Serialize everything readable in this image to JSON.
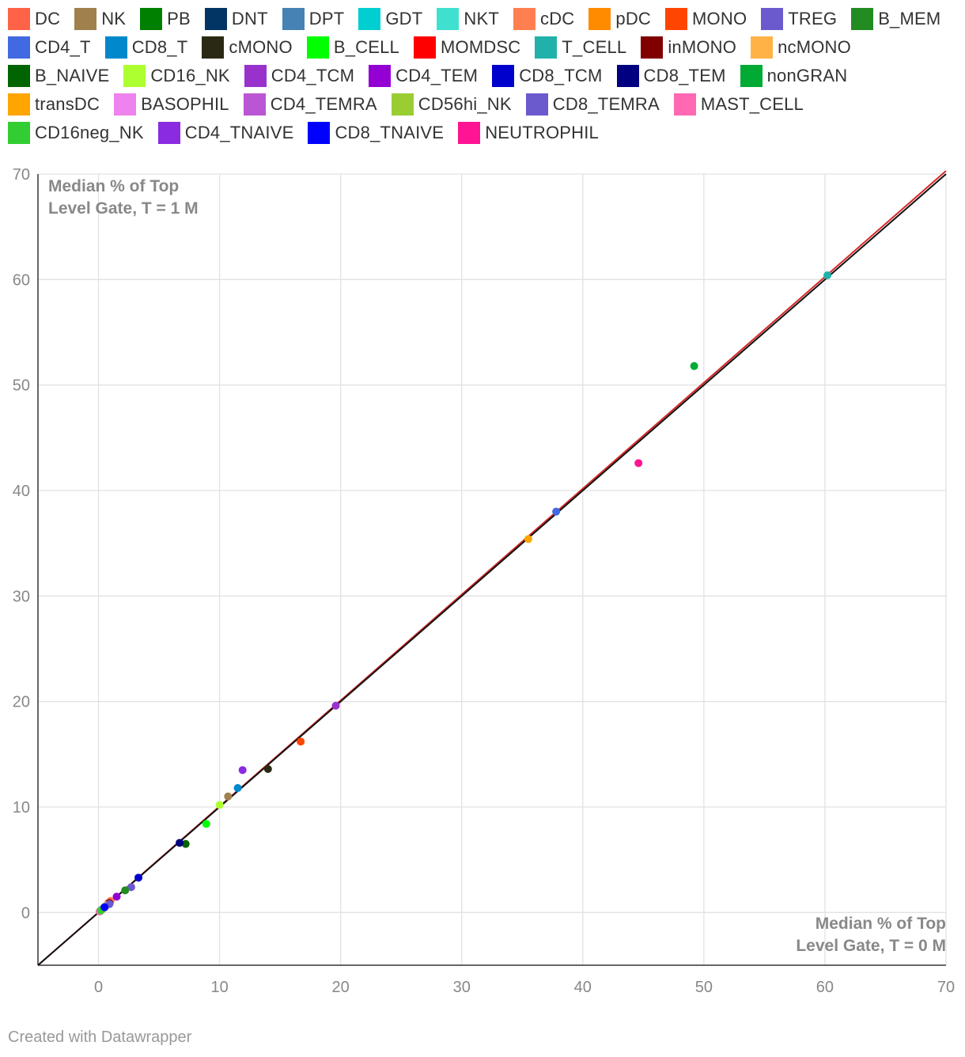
{
  "chart_data": {
    "type": "scatter",
    "xlabel": [
      "Median % of Top",
      "Level Gate, T = 0 M"
    ],
    "ylabel": [
      "Median % of Top",
      "Level Gate, T = 1 M"
    ],
    "xlim": [
      -5,
      70
    ],
    "ylim": [
      -5,
      70
    ],
    "xticks": [
      0,
      10,
      20,
      30,
      40,
      50,
      60,
      70
    ],
    "yticks": [
      0,
      10,
      20,
      30,
      40,
      50,
      60,
      70
    ],
    "grid": true,
    "legend_position": "top",
    "reference_lines": [
      {
        "name": "fit",
        "color": "#d62728",
        "points": [
          [
            -5,
            -5
          ],
          [
            70,
            70.3
          ]
        ]
      },
      {
        "name": "identity",
        "color": "#111111",
        "points": [
          [
            -5,
            -5
          ],
          [
            70,
            70
          ]
        ]
      }
    ],
    "series": [
      {
        "name": "DC",
        "color": "#ff6347",
        "x": 0.8,
        "y": 0.9
      },
      {
        "name": "NK",
        "color": "#a0804d",
        "x": 10.7,
        "y": 11.0
      },
      {
        "name": "PB",
        "color": "#008000",
        "x": 0.1,
        "y": 0.1
      },
      {
        "name": "DNT",
        "color": "#033564",
        "x": 0.5,
        "y": 0.5
      },
      {
        "name": "DPT",
        "color": "#4682b4",
        "x": 0.3,
        "y": 0.3
      },
      {
        "name": "GDT",
        "color": "#00ced1",
        "x": 0.4,
        "y": 0.4
      },
      {
        "name": "NKT",
        "color": "#40e0d0",
        "x": 0.6,
        "y": 0.6
      },
      {
        "name": "cDC",
        "color": "#ff7f50",
        "x": 1.0,
        "y": 1.1
      },
      {
        "name": "pDC",
        "color": "#ff8c00",
        "x": 0.3,
        "y": 0.3
      },
      {
        "name": "MONO",
        "color": "#ff4500",
        "x": 16.7,
        "y": 16.2
      },
      {
        "name": "TREG",
        "color": "#6a5acd",
        "x": 2.7,
        "y": 2.4
      },
      {
        "name": "B_MEM",
        "color": "#228b22",
        "x": 2.2,
        "y": 2.1
      },
      {
        "name": "CD4_T",
        "color": "#4169e1",
        "x": 37.8,
        "y": 38.0
      },
      {
        "name": "CD8_T",
        "color": "#0088cc",
        "x": 11.5,
        "y": 11.8
      },
      {
        "name": "cMONO",
        "color": "#2a2a14",
        "x": 14.0,
        "y": 13.6
      },
      {
        "name": "B_CELL",
        "color": "#00ff00",
        "x": 8.9,
        "y": 8.4
      },
      {
        "name": "MOMDSC",
        "color": "#ff0000",
        "x": 0.9,
        "y": 0.8
      },
      {
        "name": "T_CELL",
        "color": "#20b2aa",
        "x": 60.2,
        "y": 60.4
      },
      {
        "name": "inMONO",
        "color": "#800000",
        "x": 0.9,
        "y": 0.9
      },
      {
        "name": "ncMONO",
        "color": "#ffb347",
        "x": 0.7,
        "y": 0.7
      },
      {
        "name": "B_NAIVE",
        "color": "#006400",
        "x": 7.2,
        "y": 6.5
      },
      {
        "name": "CD16_NK",
        "color": "#adff2f",
        "x": 10.0,
        "y": 10.2
      },
      {
        "name": "CD4_TCM",
        "color": "#9932cc",
        "x": 19.6,
        "y": 19.6
      },
      {
        "name": "CD4_TEM",
        "color": "#9400d3",
        "x": 1.5,
        "y": 1.5
      },
      {
        "name": "CD8_TCM",
        "color": "#0000cd",
        "x": 3.3,
        "y": 3.3
      },
      {
        "name": "CD8_TEM",
        "color": "#000080",
        "x": 6.7,
        "y": 6.6
      },
      {
        "name": "nonGRAN",
        "color": "#00aa33",
        "x": 49.2,
        "y": 51.8
      },
      {
        "name": "transDC",
        "color": "#ffa500",
        "x": 35.5,
        "y": 35.4
      },
      {
        "name": "BASOPHIL",
        "color": "#ee82ee",
        "x": 0.2,
        "y": 0.2
      },
      {
        "name": "CD4_TEMRA",
        "color": "#ba55d3",
        "x": 0.2,
        "y": 0.2
      },
      {
        "name": "CD56hi_NK",
        "color": "#9acd32",
        "x": 0.6,
        "y": 0.6
      },
      {
        "name": "CD8_TEMRA",
        "color": "#6a5acd",
        "x": 0.9,
        "y": 0.8
      },
      {
        "name": "MAST_CELL",
        "color": "#ff69b4",
        "x": 0.1,
        "y": 0.1
      },
      {
        "name": "CD16neg_NK",
        "color": "#32cd32",
        "x": 0.2,
        "y": 0.2
      },
      {
        "name": "CD4_TNAIVE",
        "color": "#8a2be2",
        "x": 11.9,
        "y": 13.5
      },
      {
        "name": "CD8_TNAIVE",
        "color": "#0000ff",
        "x": 0.5,
        "y": 0.5
      },
      {
        "name": "NEUTROPHIL",
        "color": "#ff1493",
        "x": 44.6,
        "y": 42.6
      }
    ]
  },
  "footer": {
    "credit": "Created with Datawrapper"
  }
}
